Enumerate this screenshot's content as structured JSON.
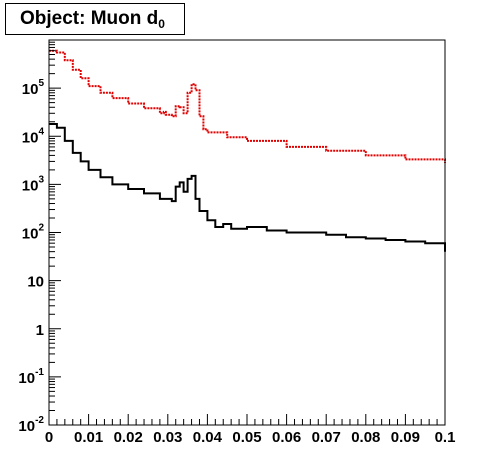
{
  "title": {
    "prefix": "Object: Muon d",
    "subscript": "0"
  },
  "chart_data": {
    "type": "histogram",
    "title": "Object: Muon d0",
    "xlabel": "",
    "ylabel": "",
    "xlim": [
      0,
      0.1
    ],
    "ylim": [
      0.01,
      1000000
    ],
    "yscale": "log",
    "grid": false,
    "legend": "none",
    "x_ticks": [
      "0",
      "0.01",
      "0.02",
      "0.03",
      "0.04",
      "0.05",
      "0.06",
      "0.07",
      "0.08",
      "0.09",
      "0.1"
    ],
    "y_ticks": [
      {
        "base": "10",
        "exp": "-2",
        "value": 0.01
      },
      {
        "base": "10",
        "exp": "-1",
        "value": 0.1
      },
      {
        "base": "1",
        "exp": "",
        "value": 1
      },
      {
        "base": "10",
        "exp": "",
        "value": 10
      },
      {
        "base": "10",
        "exp": "2",
        "value": 100
      },
      {
        "base": "10",
        "exp": "3",
        "value": 1000
      },
      {
        "base": "10",
        "exp": "4",
        "value": 10000
      },
      {
        "base": "10",
        "exp": "5",
        "value": 100000
      }
    ],
    "series": [
      {
        "color": "#e00000",
        "style": "dotted-step",
        "x": [
          0.0,
          0.002,
          0.004,
          0.006,
          0.008,
          0.01,
          0.013,
          0.016,
          0.02,
          0.024,
          0.028,
          0.029,
          0.0295,
          0.031,
          0.032,
          0.033,
          0.034,
          0.035,
          0.036,
          0.037,
          0.038,
          0.039,
          0.04,
          0.045,
          0.05,
          0.06,
          0.07,
          0.08,
          0.09,
          0.1
        ],
        "values": [
          600000,
          550000,
          380000,
          240000,
          160000,
          110000,
          80000,
          62000,
          48000,
          38000,
          30000,
          32000,
          28000,
          26000,
          42000,
          40000,
          30000,
          80000,
          120000,
          90000,
          26000,
          14000,
          12000,
          9500,
          8000,
          6000,
          5000,
          4000,
          3300,
          2800
        ]
      },
      {
        "color": "#000000",
        "style": "step",
        "x": [
          0.0,
          0.002,
          0.004,
          0.006,
          0.008,
          0.01,
          0.013,
          0.016,
          0.02,
          0.024,
          0.028,
          0.031,
          0.032,
          0.033,
          0.034,
          0.035,
          0.036,
          0.037,
          0.038,
          0.04,
          0.042,
          0.044,
          0.046,
          0.05,
          0.055,
          0.06,
          0.065,
          0.07,
          0.075,
          0.08,
          0.085,
          0.09,
          0.095,
          0.1
        ],
        "values": [
          18000,
          15000,
          8000,
          4500,
          3000,
          2000,
          1400,
          1000,
          800,
          650,
          500,
          450,
          900,
          1100,
          700,
          1300,
          1500,
          500,
          280,
          180,
          130,
          150,
          120,
          130,
          110,
          100,
          100,
          90,
          80,
          75,
          70,
          65,
          60,
          40
        ]
      }
    ]
  }
}
